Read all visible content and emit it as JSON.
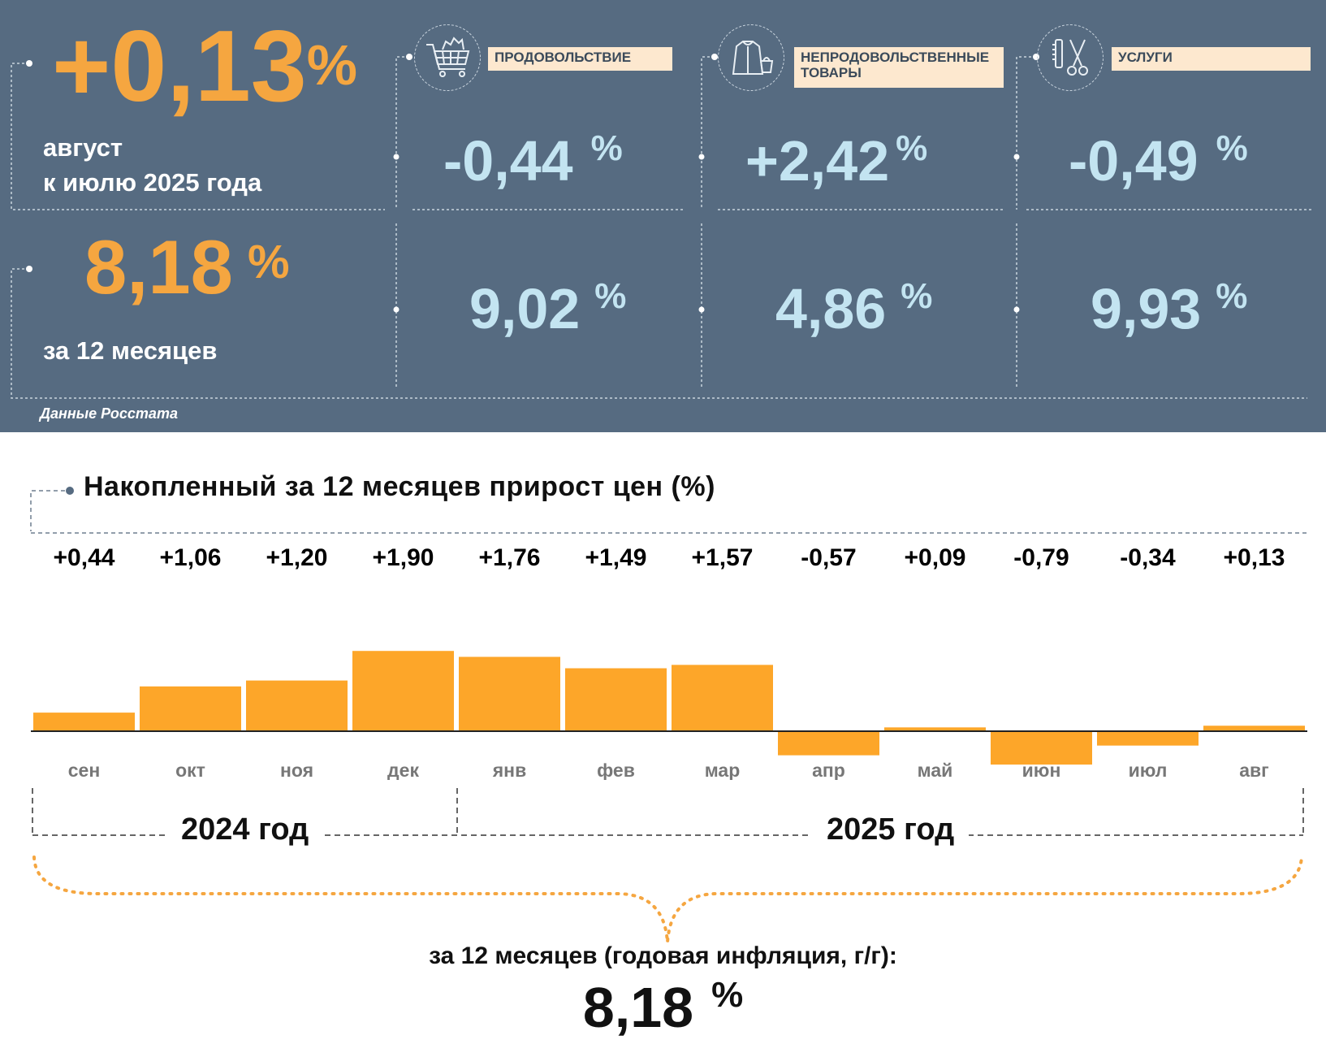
{
  "header": {
    "mom_value": "+0,13",
    "mom_unit": "%",
    "mom_caption_line1": "август",
    "mom_caption_line2": "к июлю 2025 года",
    "yoy_value": "8,18",
    "yoy_unit": "%",
    "yoy_caption": "за 12 месяцев",
    "source": "Данные Росстата"
  },
  "categories": [
    {
      "label": "ПРОДОВОЛЬСТВИЕ",
      "icon": "shopping-cart-icon",
      "mom": "-0,44",
      "yoy": "9,02",
      "unit": "%"
    },
    {
      "label": "НЕПРОДОВОЛЬСТВЕННЫЕ ТОВАРЫ",
      "icon": "clothes-icon",
      "mom": "+2,42",
      "yoy": "4,86",
      "unit": "%"
    },
    {
      "label": "УСЛУГИ",
      "icon": "scissors-comb-icon",
      "mom": "-0,49",
      "yoy": "9,93",
      "unit": "%"
    }
  ],
  "colors": {
    "panel": "#566b81",
    "accent": "#f5a640",
    "bar": "#fda629",
    "value_blue": "#c3e4f1"
  },
  "chart_data": {
    "type": "bar",
    "title": "Накопленный за 12 месяцев прирост цен (%)",
    "categories": [
      "сен",
      "окт",
      "ноя",
      "дек",
      "янв",
      "фев",
      "мар",
      "апр",
      "май",
      "июн",
      "июл",
      "авг"
    ],
    "values": [
      0.44,
      1.06,
      1.2,
      1.9,
      1.76,
      1.49,
      1.57,
      -0.57,
      0.09,
      -0.79,
      -0.34,
      0.13
    ],
    "value_labels": [
      "+0,44",
      "+1,06",
      "+1,20",
      "+1,90",
      "+1,76",
      "+1,49",
      "+1,57",
      "-0,57",
      "+0,09",
      "-0,79",
      "-0,34",
      "+0,13"
    ],
    "years": [
      {
        "label": "2024 год",
        "months": [
          "сен",
          "окт",
          "ноя",
          "дек"
        ]
      },
      {
        "label": "2025 год",
        "months": [
          "янв",
          "фев",
          "мар",
          "апр",
          "май",
          "июн",
          "июл",
          "авг"
        ]
      }
    ],
    "grid": false,
    "summary_caption": "за 12 месяцев (годовая инфляция, г/г):",
    "summary_value": "8,18",
    "summary_unit": "%"
  }
}
